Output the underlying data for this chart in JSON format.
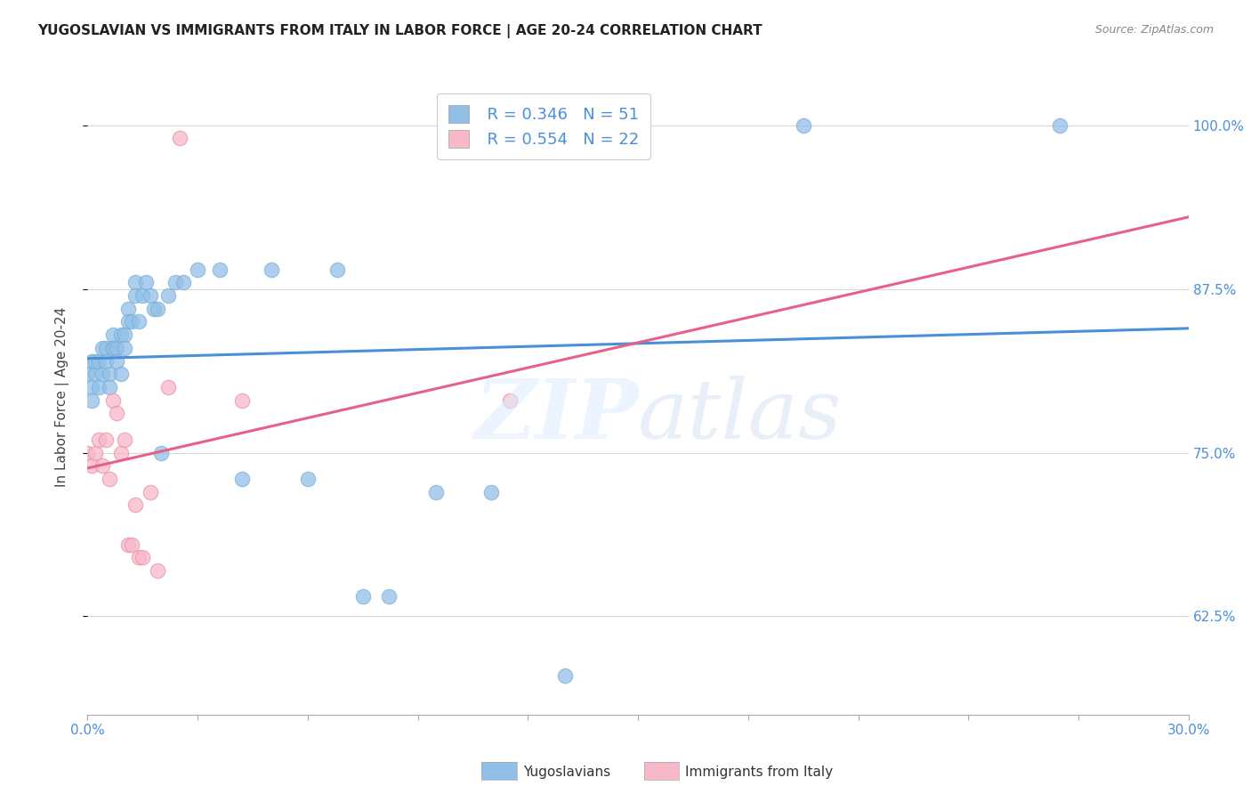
{
  "title": "YUGOSLAVIAN VS IMMIGRANTS FROM ITALY IN LABOR FORCE | AGE 20-24 CORRELATION CHART",
  "source": "Source: ZipAtlas.com",
  "ylabel": "In Labor Force | Age 20-24",
  "legend_blue_r": "R = 0.346",
  "legend_blue_n": "N = 51",
  "legend_pink_r": "R = 0.554",
  "legend_pink_n": "N = 22",
  "blue_color": "#92bfe8",
  "pink_color": "#f7b8c8",
  "trend_blue": "#4a90d9",
  "trend_pink": "#e8608a",
  "blue_scatter_x": [
    0.0,
    0.001,
    0.001,
    0.001,
    0.002,
    0.002,
    0.003,
    0.003,
    0.004,
    0.004,
    0.005,
    0.005,
    0.006,
    0.006,
    0.007,
    0.007,
    0.007,
    0.008,
    0.008,
    0.009,
    0.009,
    0.01,
    0.01,
    0.011,
    0.011,
    0.012,
    0.013,
    0.013,
    0.014,
    0.015,
    0.016,
    0.017,
    0.018,
    0.019,
    0.02,
    0.022,
    0.024,
    0.026,
    0.03,
    0.036,
    0.042,
    0.05,
    0.06,
    0.068,
    0.075,
    0.082,
    0.095,
    0.11,
    0.13,
    0.195,
    0.265
  ],
  "blue_scatter_y": [
    0.81,
    0.8,
    0.82,
    0.79,
    0.81,
    0.82,
    0.8,
    0.82,
    0.83,
    0.81,
    0.83,
    0.82,
    0.81,
    0.8,
    0.83,
    0.84,
    0.83,
    0.83,
    0.82,
    0.84,
    0.81,
    0.84,
    0.83,
    0.86,
    0.85,
    0.85,
    0.88,
    0.87,
    0.85,
    0.87,
    0.88,
    0.87,
    0.86,
    0.86,
    0.75,
    0.87,
    0.88,
    0.88,
    0.89,
    0.89,
    0.73,
    0.89,
    0.73,
    0.89,
    0.64,
    0.64,
    0.72,
    0.72,
    0.58,
    1.0,
    1.0
  ],
  "pink_scatter_x": [
    0.0,
    0.001,
    0.002,
    0.003,
    0.004,
    0.005,
    0.006,
    0.007,
    0.008,
    0.009,
    0.01,
    0.011,
    0.012,
    0.013,
    0.014,
    0.015,
    0.017,
    0.019,
    0.022,
    0.025,
    0.042,
    0.115
  ],
  "pink_scatter_y": [
    0.75,
    0.74,
    0.75,
    0.76,
    0.74,
    0.76,
    0.73,
    0.79,
    0.78,
    0.75,
    0.76,
    0.68,
    0.68,
    0.71,
    0.67,
    0.67,
    0.72,
    0.66,
    0.8,
    0.99,
    0.79,
    0.79
  ],
  "xmin": 0.0,
  "xmax": 0.3,
  "ymin": 0.55,
  "ymax": 1.035,
  "yticks": [
    0.625,
    0.75,
    0.875,
    1.0
  ],
  "ytick_labels": [
    "62.5%",
    "75.0%",
    "87.5%",
    "100.0%"
  ],
  "xtick_left_label": "0.0%",
  "xtick_right_label": "30.0%"
}
